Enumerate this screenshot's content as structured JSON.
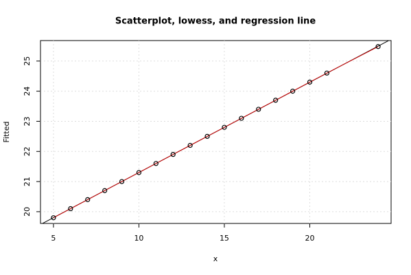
{
  "chart_data": {
    "type": "scatter",
    "title": "Scatterplot, lowess, and regression line",
    "x_label": "x",
    "y_label": "Fitted",
    "x": [
      5,
      6,
      7,
      8,
      9,
      10,
      11,
      12,
      13,
      14,
      15,
      16,
      17,
      18,
      19,
      20,
      21,
      24
    ],
    "values": [
      19.8,
      20.1,
      20.4,
      20.7,
      21.0,
      21.3,
      21.6,
      21.9,
      22.2,
      22.5,
      22.8,
      23.1,
      23.4,
      23.7,
      24.0,
      24.3,
      24.6,
      25.48
    ],
    "color": "#000000",
    "lowess_color": "#cc0000",
    "regression_color": "#000000",
    "xlim": [
      4.24,
      24.76
    ],
    "ylim": [
      19.61,
      25.68
    ],
    "xticks": [
      5,
      10,
      15,
      20
    ],
    "yticks": [
      20,
      21,
      22,
      23,
      24,
      25
    ],
    "grid": true
  }
}
